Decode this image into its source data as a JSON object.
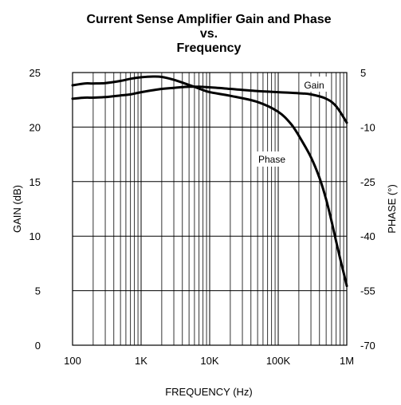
{
  "chart_data": {
    "type": "line",
    "title": [
      "Current Sense Amplifier Gain and Phase",
      "vs.",
      "Frequency"
    ],
    "xlabel": "FREQUENCY (Hz)",
    "ylabel_left": "GAIN (dB)",
    "ylabel_right": "PHASE (°)",
    "x_scale": "log",
    "xlim": [
      100,
      1000000
    ],
    "ylim_left": [
      0,
      25
    ],
    "ylim_right": [
      -70,
      5
    ],
    "x_ticks": [
      100,
      1000,
      10000,
      100000,
      1000000
    ],
    "x_tick_labels": [
      "100",
      "1K",
      "10K",
      "100K",
      "1M"
    ],
    "y_left_ticks": [
      0,
      5,
      10,
      15,
      20,
      25
    ],
    "y_left_tick_labels": [
      "0",
      "5",
      "10",
      "15",
      "20",
      "25"
    ],
    "y_right_ticks": [
      -70,
      -55,
      -40,
      -25,
      -10,
      5
    ],
    "y_right_tick_labels": [
      "-70",
      "-55",
      "-40",
      "-25",
      "-10",
      "5"
    ],
    "grid": true,
    "series": [
      {
        "name": "Gain",
        "axis": "left",
        "x": [
          100,
          150,
          200,
          300,
          500,
          700,
          1000,
          2000,
          3000,
          5000,
          7000,
          10000,
          20000,
          50000,
          100000,
          200000,
          300000,
          500000,
          700000,
          1000000
        ],
        "y": [
          22.6,
          22.7,
          22.7,
          22.75,
          22.9,
          23.0,
          23.2,
          23.5,
          23.6,
          23.7,
          23.7,
          23.65,
          23.5,
          23.3,
          23.2,
          23.1,
          23.0,
          22.6,
          21.9,
          20.4
        ]
      },
      {
        "name": "Phase",
        "axis": "right",
        "x": [
          100,
          150,
          200,
          300,
          500,
          700,
          1000,
          1500,
          2000,
          3000,
          5000,
          7000,
          10000,
          20000,
          50000,
          100000,
          150000,
          200000,
          300000,
          400000,
          500000,
          600000,
          700000,
          800000,
          900000,
          1000000
        ],
        "y": [
          1.5,
          2.0,
          2.0,
          2.1,
          2.7,
          3.3,
          3.7,
          3.9,
          3.8,
          3.0,
          1.6,
          0.6,
          -0.4,
          -1.4,
          -3.1,
          -5.8,
          -8.9,
          -12.4,
          -18.3,
          -24.0,
          -29.9,
          -35.9,
          -41.5,
          -46.2,
          -50.1,
          -53.7
        ]
      }
    ],
    "annotations": [
      "Gain",
      "Phase"
    ]
  }
}
